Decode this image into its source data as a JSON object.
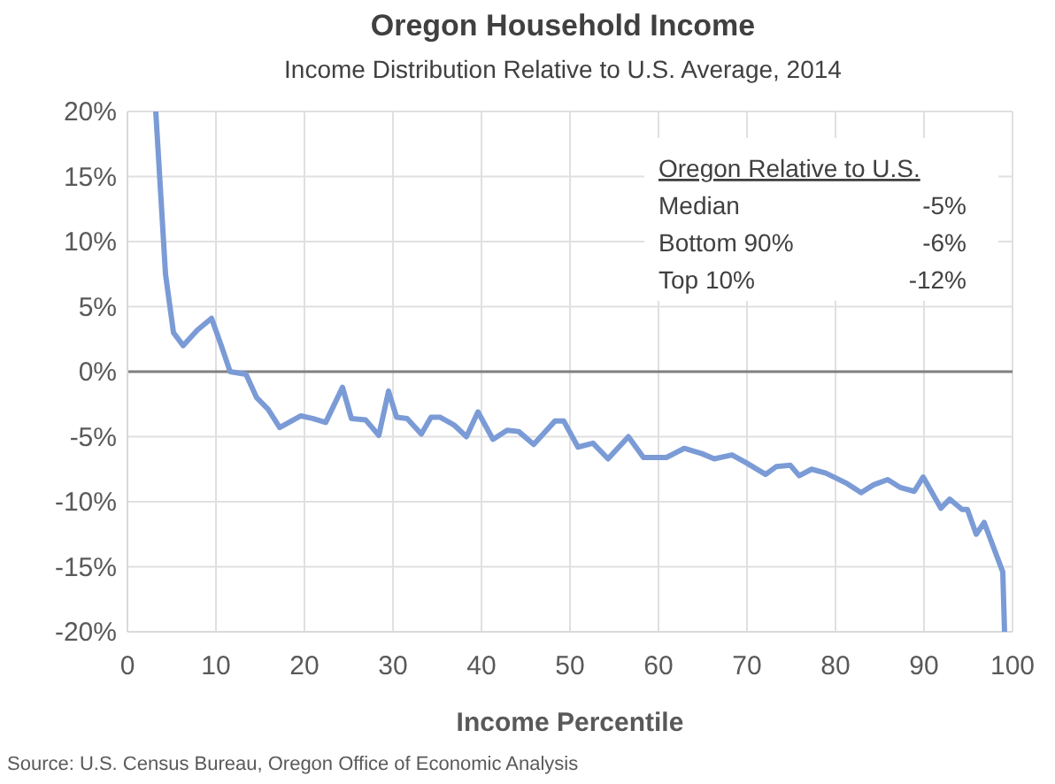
{
  "chart_data": {
    "type": "line",
    "title": "Oregon Household Income",
    "subtitle": "Income Distribution Relative to U.S. Average, 2014",
    "xlabel": "Income Percentile",
    "x": [
      3.2,
      4.3,
      5.2,
      6.3,
      7.9,
      9.5,
      10.6,
      11.6,
      13.4,
      14.6,
      15.9,
      17.2,
      19.6,
      20.9,
      22.4,
      24.3,
      25.3,
      26.9,
      28.4,
      29.5,
      30.4,
      31.6,
      33.2,
      34.3,
      35.3,
      36.9,
      38.3,
      39.6,
      41.3,
      42.9,
      44.2,
      45.9,
      48.3,
      49.3,
      50.9,
      52.6,
      54.3,
      56.6,
      58.3,
      60.9,
      62.9,
      64.9,
      66.3,
      68.3,
      69.9,
      72.1,
      73.3,
      74.9,
      75.9,
      77.3,
      78.9,
      81.3,
      82.9,
      84.3,
      85.9,
      87.3,
      88.9,
      89.9,
      91.9,
      92.9,
      94.3,
      94.9,
      95.9,
      96.8,
      98.9,
      99.1
    ],
    "series": [
      {
        "color": "#7b9bd6",
        "values": [
          20,
          7.5,
          3,
          2,
          3.2,
          4.1,
          2,
          0,
          -0.2,
          -2,
          -2.9,
          -4.3,
          -3.4,
          -3.6,
          -3.9,
          -1.2,
          -3.6,
          -3.7,
          -4.9,
          -1.5,
          -3.5,
          -3.6,
          -4.8,
          -3.5,
          -3.5,
          -4.1,
          -5,
          -3.1,
          -5.2,
          -4.5,
          -4.6,
          -5.6,
          -3.8,
          -3.8,
          -5.8,
          -5.5,
          -6.7,
          -5,
          -6.6,
          -6.6,
          -5.9,
          -6.3,
          -6.7,
          -6.4,
          -7,
          -7.9,
          -7.3,
          -7.2,
          -8,
          -7.5,
          -7.8,
          -8.6,
          -9.3,
          -8.7,
          -8.3,
          -8.9,
          -9.2,
          -8.1,
          -10.5,
          -9.8,
          -10.6,
          -10.6,
          -12.5,
          -11.6,
          -15.4,
          -20
        ]
      }
    ],
    "xlim": [
      0,
      100
    ],
    "xticks": [
      0,
      10,
      20,
      30,
      40,
      50,
      60,
      70,
      80,
      90,
      100
    ],
    "ylim": [
      -20,
      20
    ],
    "yticks": [
      {
        "value": -20,
        "label": "-20%"
      },
      {
        "value": -15,
        "label": "-15%"
      },
      {
        "value": -10,
        "label": "-10%"
      },
      {
        "value": -5,
        "label": "-5%"
      },
      {
        "value": 0,
        "label": "0%"
      },
      {
        "value": 5,
        "label": "5%"
      },
      {
        "value": 10,
        "label": "10%"
      },
      {
        "value": 15,
        "label": "15%"
      },
      {
        "value": 20,
        "label": "20%"
      }
    ],
    "grid": true,
    "line_style": "solid",
    "ref_lines": [
      {
        "axis": "y",
        "value": 0,
        "color": "#808080"
      }
    ],
    "annotations": [
      "Oregon Relative to U.S.",
      "Median",
      "-5%",
      "Bottom 90%",
      "-6%",
      "Top 10%",
      "-12%",
      "Source: U.S. Census Bureau, Oregon Office of Economic Analysis"
    ]
  }
}
